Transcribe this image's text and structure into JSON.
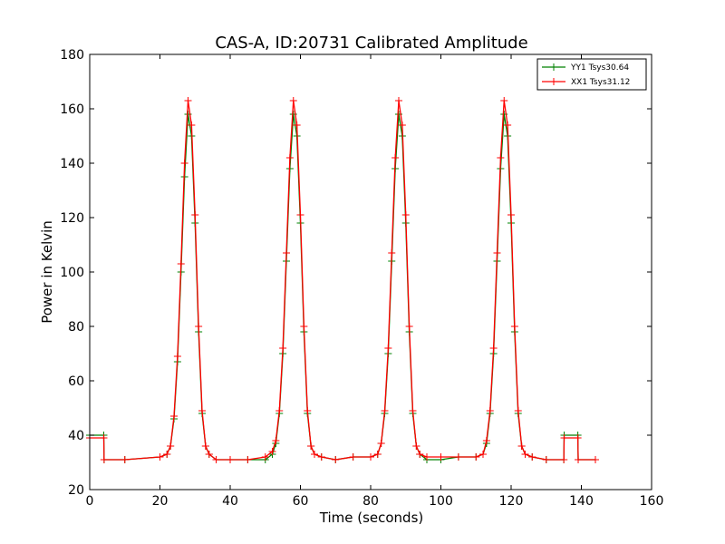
{
  "chart_data": {
    "type": "line",
    "title": "CAS-A, ID:20731 Calibrated Amplitude",
    "xlabel": "Time (seconds)",
    "ylabel": "Power in Kelvin",
    "xlim": [
      0,
      160
    ],
    "ylim": [
      20,
      180
    ],
    "xticks": [
      0,
      20,
      40,
      60,
      80,
      100,
      120,
      140,
      160
    ],
    "yticks": [
      20,
      40,
      60,
      80,
      100,
      120,
      140,
      160,
      180
    ],
    "grid": false,
    "legend_position": "top-right",
    "marker": "plus",
    "series": [
      {
        "name": "YY1 Tsys30.64",
        "color": "#008000",
        "x": [
          0,
          4,
          4.1,
          10,
          20,
          22,
          23,
          24,
          25,
          26,
          27,
          28,
          29,
          30,
          31,
          32,
          33,
          34,
          36,
          40,
          45,
          50,
          52,
          53,
          54,
          55,
          56,
          57,
          58,
          59,
          60,
          61,
          62,
          63,
          64,
          66,
          70,
          75,
          80,
          82,
          83,
          84,
          85,
          86,
          87,
          88,
          89,
          90,
          91,
          92,
          93,
          94,
          96,
          100,
          105,
          110,
          112,
          113,
          114,
          115,
          116,
          117,
          118,
          119,
          120,
          121,
          122,
          123,
          124,
          126,
          130,
          135,
          135.1,
          139,
          139.1,
          144
        ],
        "y": [
          40,
          40,
          31,
          31,
          32,
          33,
          36,
          46,
          67,
          100,
          135,
          158,
          150,
          118,
          78,
          48,
          36,
          33,
          31,
          31,
          31,
          31,
          33,
          37,
          48,
          70,
          104,
          138,
          158,
          150,
          118,
          78,
          48,
          36,
          33,
          32,
          31,
          32,
          32,
          33,
          37,
          48,
          70,
          104,
          138,
          158,
          150,
          118,
          78,
          48,
          36,
          33,
          31,
          31,
          32,
          32,
          33,
          37,
          48,
          70,
          104,
          138,
          158,
          150,
          118,
          78,
          48,
          36,
          33,
          32,
          31,
          31,
          40,
          40,
          31,
          31
        ]
      },
      {
        "name": "XX1 Tsys31.12",
        "color": "#ff0000",
        "x": [
          0,
          4,
          4.1,
          10,
          20,
          22,
          23,
          24,
          25,
          26,
          27,
          28,
          29,
          30,
          31,
          32,
          33,
          34,
          36,
          40,
          45,
          50,
          52,
          53,
          54,
          55,
          56,
          57,
          58,
          59,
          60,
          61,
          62,
          63,
          64,
          66,
          70,
          75,
          80,
          82,
          83,
          84,
          85,
          86,
          87,
          88,
          89,
          90,
          91,
          92,
          93,
          94,
          96,
          100,
          105,
          110,
          112,
          113,
          114,
          115,
          116,
          117,
          118,
          119,
          120,
          121,
          122,
          123,
          124,
          126,
          130,
          135,
          135.1,
          139,
          139.1,
          144
        ],
        "y": [
          39,
          39,
          31,
          31,
          32,
          33,
          36,
          47,
          69,
          103,
          140,
          163,
          154,
          121,
          80,
          49,
          36,
          33,
          31,
          31,
          31,
          32,
          34,
          38,
          49,
          72,
          107,
          142,
          163,
          154,
          121,
          80,
          49,
          36,
          33,
          32,
          31,
          32,
          32,
          33,
          37,
          49,
          72,
          107,
          142,
          163,
          154,
          121,
          80,
          49,
          36,
          33,
          32,
          32,
          32,
          32,
          33,
          38,
          49,
          72,
          107,
          142,
          163,
          154,
          121,
          80,
          49,
          36,
          33,
          32,
          31,
          31,
          39,
          39,
          31,
          31
        ]
      }
    ]
  }
}
